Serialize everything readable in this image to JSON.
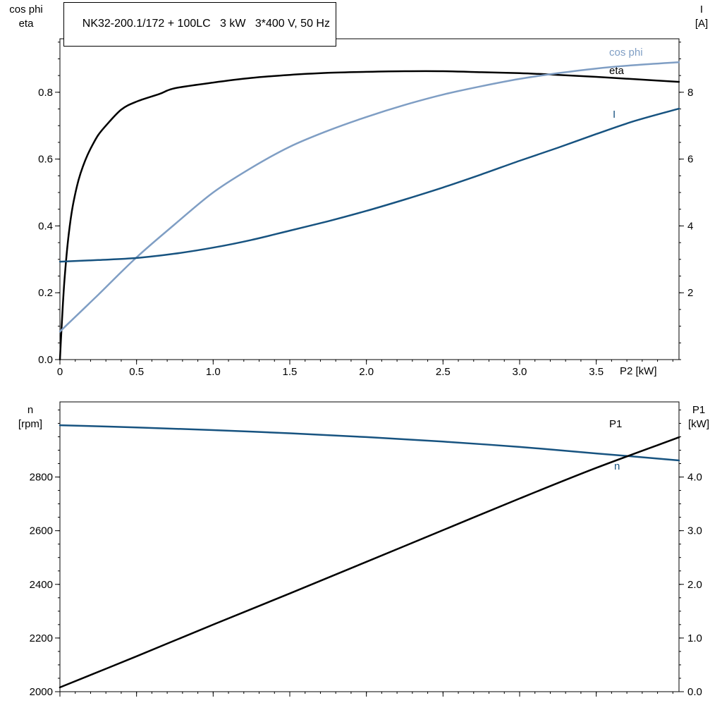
{
  "header": {
    "model_title": "NK32-200.1/172 + 100LC   3 kW   3*400 V, 50 Hz"
  },
  "colors": {
    "black": "#000000",
    "light_blue": "#7f9ec4",
    "dark_blue": "#175380"
  },
  "chart_data": [
    {
      "id": "motor-efficiency",
      "type": "line",
      "title": "",
      "x_axis": {
        "label": "P2 [kW]",
        "min": 0,
        "max": 4.04,
        "major_tick_values": [
          0,
          0.5,
          1.0,
          1.5,
          2.0,
          2.5,
          3.0,
          3.5
        ],
        "major_tick_labels": [
          "0",
          "0.5",
          "1.0",
          "1.5",
          "2.0",
          "2.5",
          "3.0",
          "3.5"
        ],
        "minor_step": 0.1,
        "show_labels": true
      },
      "left_axis": {
        "title_lines": [
          "cos phi",
          "eta"
        ],
        "min": 0,
        "max": 0.96,
        "major_tick_values": [
          0,
          0.2,
          0.4,
          0.6,
          0.8
        ],
        "major_tick_labels": [
          "0.0",
          "0.2",
          "0.4",
          "0.6",
          "0.8"
        ],
        "minor_step": 0.05
      },
      "right_axis": {
        "title_lines": [
          "I",
          "[A]"
        ],
        "min": 0,
        "max": 9.6,
        "major_tick_values": [
          2,
          4,
          6,
          8
        ],
        "major_tick_labels": [
          "2",
          "4",
          "6",
          "8"
        ],
        "minor_step": 0.5
      },
      "series": [
        {
          "name": "eta",
          "label": "eta",
          "color": "#000000",
          "axis": "left",
          "points": [
            [
              0,
              0
            ],
            [
              0.01,
              0.09
            ],
            [
              0.02,
              0.17
            ],
            [
              0.03,
              0.24
            ],
            [
              0.05,
              0.345
            ],
            [
              0.07,
              0.42
            ],
            [
              0.09,
              0.475
            ],
            [
              0.12,
              0.535
            ],
            [
              0.15,
              0.578
            ],
            [
              0.18,
              0.612
            ],
            [
              0.21,
              0.64
            ],
            [
              0.25,
              0.672
            ],
            [
              0.3,
              0.7
            ],
            [
              0.4,
              0.748
            ],
            [
              0.5,
              0.772
            ],
            [
              0.65,
              0.795
            ],
            [
              0.75,
              0.812
            ],
            [
              1.0,
              0.829
            ],
            [
              1.25,
              0.843
            ],
            [
              1.5,
              0.852
            ],
            [
              1.75,
              0.858
            ],
            [
              2.0,
              0.861
            ],
            [
              2.25,
              0.863
            ],
            [
              2.5,
              0.863
            ],
            [
              2.75,
              0.86
            ],
            [
              3.0,
              0.857
            ],
            [
              3.25,
              0.852
            ],
            [
              3.5,
              0.846
            ],
            [
              3.75,
              0.839
            ],
            [
              4.04,
              0.831
            ]
          ]
        },
        {
          "name": "cos_phi",
          "label": "cos phi",
          "color": "#7f9ec4",
          "axis": "left",
          "points": [
            [
              0,
              0.084
            ],
            [
              0.25,
              0.194
            ],
            [
              0.5,
              0.306
            ],
            [
              0.75,
              0.405
            ],
            [
              1.0,
              0.5
            ],
            [
              1.25,
              0.574
            ],
            [
              1.5,
              0.637
            ],
            [
              1.75,
              0.685
            ],
            [
              2.0,
              0.726
            ],
            [
              2.25,
              0.762
            ],
            [
              2.5,
              0.793
            ],
            [
              2.75,
              0.818
            ],
            [
              3.0,
              0.84
            ],
            [
              3.25,
              0.857
            ],
            [
              3.5,
              0.871
            ],
            [
              3.75,
              0.881
            ],
            [
              4.04,
              0.89
            ]
          ]
        },
        {
          "name": "current",
          "label": "I",
          "color": "#175380",
          "axis": "right",
          "points": [
            [
              0,
              2.93
            ],
            [
              0.25,
              2.98
            ],
            [
              0.5,
              3.04
            ],
            [
              0.75,
              3.17
            ],
            [
              1.0,
              3.35
            ],
            [
              1.25,
              3.58
            ],
            [
              1.5,
              3.86
            ],
            [
              1.75,
              4.14
            ],
            [
              2.0,
              4.45
            ],
            [
              2.25,
              4.79
            ],
            [
              2.5,
              5.15
            ],
            [
              2.75,
              5.54
            ],
            [
              3.0,
              5.95
            ],
            [
              3.25,
              6.34
            ],
            [
              3.5,
              6.75
            ],
            [
              3.75,
              7.14
            ],
            [
              4.04,
              7.51
            ]
          ]
        }
      ]
    },
    {
      "id": "motor-speed-power",
      "type": "line",
      "title": "",
      "x_axis": {
        "label": "",
        "min": 0,
        "max": 4.04,
        "major_tick_values": [
          0,
          0.5,
          1.0,
          1.5,
          2.0,
          2.5,
          3.0,
          3.5
        ],
        "major_tick_labels": [],
        "minor_step": 0.1,
        "show_labels": false
      },
      "left_axis": {
        "title_lines": [
          "n",
          "[rpm]"
        ],
        "min": 2000,
        "max": 3080,
        "major_tick_values": [
          2000,
          2200,
          2400,
          2600,
          2800
        ],
        "major_tick_labels": [
          "2000",
          "2200",
          "2400",
          "2600",
          "2800"
        ],
        "minor_step": 50
      },
      "right_axis": {
        "title_lines": [
          "P1",
          "[kW]"
        ],
        "min": 0,
        "max": 5.4,
        "major_tick_values": [
          0,
          1,
          2,
          3,
          4
        ],
        "major_tick_labels": [
          "0.0",
          "1.0",
          "2.0",
          "3.0",
          "4.0"
        ],
        "minor_step": 0.25
      },
      "series": [
        {
          "name": "speed",
          "label": "n",
          "color": "#175380",
          "axis": "left",
          "points": [
            [
              0,
              2993
            ],
            [
              0.5,
              2985
            ],
            [
              1.0,
              2975
            ],
            [
              1.5,
              2963
            ],
            [
              2.0,
              2949
            ],
            [
              2.5,
              2932
            ],
            [
              3.0,
              2912
            ],
            [
              3.5,
              2888
            ],
            [
              4.04,
              2862
            ]
          ]
        },
        {
          "name": "input_power",
          "label": "P1",
          "color": "#000000",
          "axis": "right",
          "points": [
            [
              0,
              0.08
            ],
            [
              0.5,
              0.66
            ],
            [
              1.0,
              1.25
            ],
            [
              1.5,
              1.83
            ],
            [
              2.0,
              2.42
            ],
            [
              2.5,
              3.01
            ],
            [
              3.0,
              3.6
            ],
            [
              3.5,
              4.17
            ],
            [
              4.04,
              4.74
            ]
          ]
        }
      ]
    }
  ]
}
